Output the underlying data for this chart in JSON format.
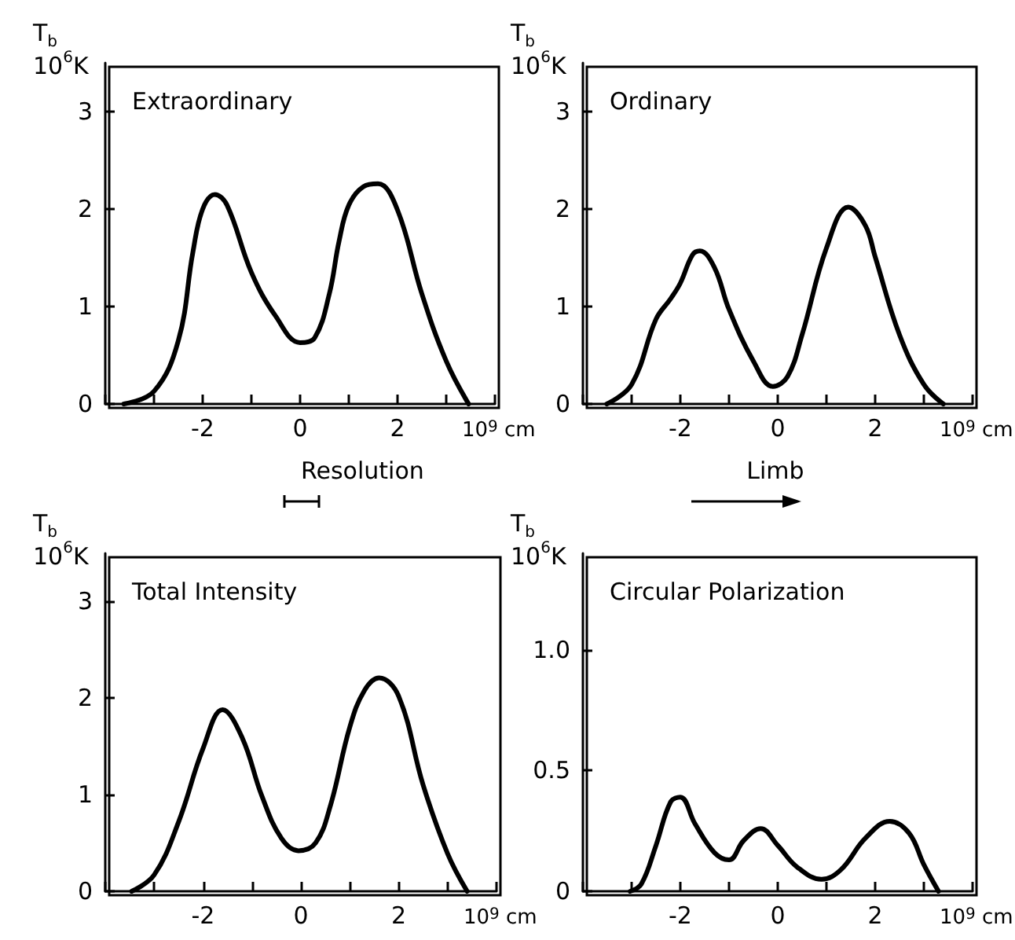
{
  "chart_data": [
    {
      "type": "line",
      "title": "Extraordinary",
      "xlabel": "10$^{9}$ cm",
      "ylabel": "T$_{b}$\n10$^{6}$K",
      "color": "#000000",
      "x": [
        -3.62,
        -3.0,
        -2.5,
        -2.2,
        -2.0,
        -1.75,
        -1.5,
        -1.0,
        -0.5,
        0,
        0.3,
        0.6,
        0.8,
        1.0,
        1.3,
        1.6,
        2.0,
        2.5,
        3.0,
        3.46
      ],
      "values": [
        0,
        0.13,
        0.65,
        1.56,
        2.0,
        2.15,
        2.04,
        1.35,
        0.9,
        0.63,
        0.68,
        1.13,
        1.67,
        2.04,
        2.23,
        2.26,
        1.99,
        1.13,
        0.44,
        0
      ],
      "xlim": [
        -4,
        4
      ],
      "xticks": [
        {
          "value": -4,
          "label": null
        },
        {
          "value": -3,
          "label": null
        },
        -2,
        {
          "value": -1,
          "label": null
        },
        0,
        {
          "value": 1,
          "label": null
        },
        2,
        {
          "value": 3,
          "label": null
        },
        {
          "value": 4,
          "label": null
        }
      ],
      "ylim": [
        0,
        3.5
      ],
      "yticks": [
        0,
        1,
        2,
        3
      ]
    },
    {
      "type": "line",
      "title": "Ordinary",
      "xlabel": "10$^{9}$ cm",
      "ylabel": "T$_{b}$\n10$^{6}$K",
      "color": "#000000",
      "x": [
        -3.51,
        -3.0,
        -2.5,
        -2.2,
        -2.0,
        -1.75,
        -1.6,
        -1.3,
        -1.0,
        -0.5,
        -0.1,
        0.2,
        0.5,
        1.0,
        1.45,
        1.8,
        2.0,
        2.5,
        3.0,
        3.4
      ],
      "values": [
        0,
        0.2,
        0.87,
        1.08,
        1.24,
        1.53,
        1.57,
        1.4,
        0.97,
        0.44,
        0.18,
        0.28,
        0.71,
        1.6,
        2.02,
        1.83,
        1.51,
        0.71,
        0.2,
        0
      ],
      "xlim": [
        -4,
        4
      ],
      "xticks": [
        {
          "value": -4,
          "label": null
        },
        {
          "value": -3,
          "label": null
        },
        -2,
        {
          "value": -1,
          "label": null
        },
        0,
        {
          "value": 1,
          "label": null
        },
        2,
        {
          "value": 3,
          "label": null
        },
        {
          "value": 4,
          "label": null
        }
      ],
      "ylim": [
        0,
        3.5
      ],
      "yticks": [
        0,
        1,
        2,
        3
      ]
    },
    {
      "type": "line",
      "title": "Total Intensity",
      "xlabel": "10$^{9}$ cm",
      "ylabel": "T$_{b}$\n10$^{6}$K",
      "color": "#000000",
      "annotations": [
        "Resolution"
      ],
      "x": [
        -3.46,
        -3.0,
        -2.5,
        -2.0,
        -1.6,
        -1.2,
        -0.8,
        -0.4,
        -0.05,
        0.3,
        0.6,
        1.0,
        1.3,
        1.6,
        2.0,
        2.5,
        3.0,
        3.4
      ],
      "values": [
        0,
        0.17,
        0.72,
        1.48,
        1.88,
        1.59,
        0.99,
        0.55,
        0.42,
        0.5,
        0.88,
        1.7,
        2.08,
        2.21,
        2.02,
        1.1,
        0.39,
        0
      ],
      "xlim": [
        -4,
        4
      ],
      "xticks": [
        {
          "value": -4,
          "label": null
        },
        {
          "value": -3,
          "label": null
        },
        -2,
        {
          "value": -1,
          "label": null
        },
        0,
        {
          "value": 1,
          "label": null
        },
        2,
        {
          "value": 3,
          "label": null
        },
        {
          "value": 4,
          "label": null
        }
      ],
      "ylim": [
        0,
        3.5
      ],
      "yticks": [
        0,
        1,
        2,
        3
      ]
    },
    {
      "type": "line",
      "title": "Circular Polarization",
      "xlabel": "10$^{9}$ cm",
      "ylabel": "T$_{b}$\n10$^{6}$K",
      "color": "#000000",
      "annotations": [
        "Limb"
      ],
      "x": [
        -3.03,
        -2.8,
        -2.5,
        -2.2,
        -2.0,
        -1.7,
        -1.3,
        -1.0,
        -0.7,
        -0.35,
        0,
        0.4,
        0.9,
        1.3,
        1.8,
        2.3,
        2.7,
        3.0,
        3.3
      ],
      "values": [
        0,
        0.03,
        0.19,
        0.37,
        0.39,
        0.28,
        0.16,
        0.13,
        0.21,
        0.26,
        0.19,
        0.1,
        0.05,
        0.09,
        0.22,
        0.29,
        0.24,
        0.11,
        0
      ],
      "xlim": [
        -4,
        4
      ],
      "xticks": [
        {
          "value": -4,
          "label": null
        },
        {
          "value": -3,
          "label": null
        },
        -2,
        {
          "value": -1,
          "label": null
        },
        0,
        {
          "value": 1,
          "label": null
        },
        2,
        {
          "value": 3,
          "label": null
        },
        {
          "value": 4,
          "label": null
        }
      ],
      "ylim": [
        0,
        1.4
      ],
      "yticks": [
        0,
        {
          "value": 0.5,
          "label": "0.5"
        },
        {
          "value": 1,
          "label": "1.0"
        }
      ]
    }
  ]
}
